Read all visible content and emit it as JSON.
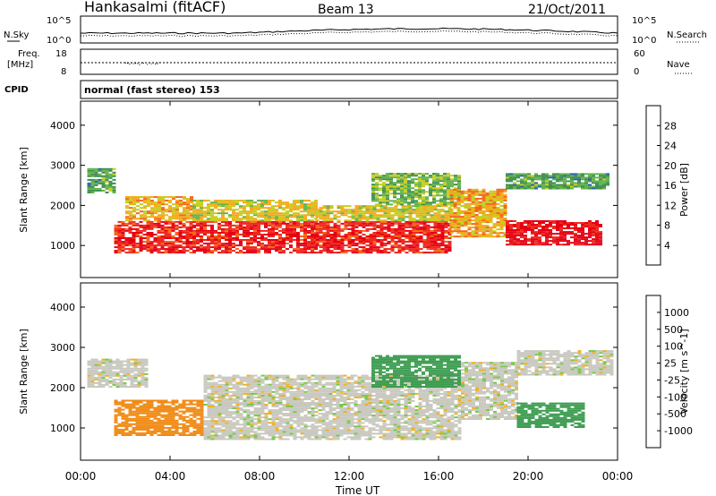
{
  "header": {
    "station": "Hankasalmi (fitACF)",
    "beam": "Beam 13",
    "date": "21/Oct/2011"
  },
  "sky_panel": {
    "left_label": "N.Sky",
    "left_ticks": [
      "10^5",
      "10^0"
    ],
    "right_label": "N.Search",
    "right_ticks": [
      "10^5",
      "10^0"
    ]
  },
  "freq_panel": {
    "left_label_1": "Freq.",
    "left_label_2": "[MHz]",
    "left_ticks": [
      "18",
      "8"
    ],
    "right_label": "Nave",
    "right_ticks": [
      "60",
      "0"
    ]
  },
  "cpid": {
    "label": "CPID",
    "value": "normal (fast stereo) 153"
  },
  "colors": {
    "power_scale": [
      "#0018ff",
      "#2f5fb0",
      "#3f8f50",
      "#63b34a",
      "#c6cc1c",
      "#f6a718",
      "#f5661c",
      "#ee2a1f",
      "#e60015"
    ],
    "velocity_scale": [
      "#e01010",
      "#f05a12",
      "#f08a14",
      "#f0b020",
      "#c8c8bf",
      "#c8c8bf",
      "#78c84a",
      "#3c9c50",
      "#2f6ab8",
      "#2e38a8"
    ]
  },
  "chart_data": [
    {
      "type": "heatmap",
      "title": "",
      "xlabel": "",
      "ylabel": "Slant Range [km]",
      "x_ticks": [
        "00:00",
        "04:00",
        "08:00",
        "12:00",
        "16:00",
        "20:00",
        "00:00"
      ],
      "y_ticks": [
        "1000",
        "2000",
        "3000",
        "4000"
      ],
      "ylim": [
        200,
        4600
      ],
      "colorbar": {
        "label": "Power [dB]",
        "ticks": [
          "4",
          "8",
          "12",
          "16",
          "20",
          "24",
          "28"
        ],
        "range": [
          0,
          30
        ]
      },
      "regions": [
        {
          "t0": 0.3,
          "t1": 1.5,
          "r0": 2300,
          "r1": 2900,
          "value": 10
        },
        {
          "t0": 1.5,
          "t1": 5.0,
          "r0": 800,
          "r1": 1600,
          "value": 26
        },
        {
          "t0": 2.0,
          "t1": 5.0,
          "r0": 1600,
          "r1": 2200,
          "value": 18
        },
        {
          "t0": 5.0,
          "t1": 10.5,
          "r0": 800,
          "r1": 1600,
          "value": 26
        },
        {
          "t0": 5.0,
          "t1": 10.5,
          "r0": 1600,
          "r1": 2100,
          "value": 16
        },
        {
          "t0": 10.5,
          "t1": 16.5,
          "r0": 800,
          "r1": 1600,
          "value": 26
        },
        {
          "t0": 10.5,
          "t1": 16.5,
          "r0": 1600,
          "r1": 2000,
          "value": 16
        },
        {
          "t0": 13.0,
          "t1": 17.0,
          "r0": 2000,
          "r1": 2800,
          "value": 12
        },
        {
          "t0": 16.5,
          "t1": 19.0,
          "r0": 1200,
          "r1": 2400,
          "value": 18
        },
        {
          "t0": 19.0,
          "t1": 23.3,
          "r0": 1000,
          "r1": 1600,
          "value": 28
        },
        {
          "t0": 19.0,
          "t1": 23.5,
          "r0": 2400,
          "r1": 2800,
          "value": 10
        }
      ]
    },
    {
      "type": "heatmap",
      "title": "",
      "xlabel": "Time UT",
      "ylabel": "Slant Range [km]",
      "x_ticks": [
        "00:00",
        "04:00",
        "08:00",
        "12:00",
        "16:00",
        "20:00",
        "00:00"
      ],
      "y_ticks": [
        "1000",
        "2000",
        "3000",
        "4000"
      ],
      "ylim": [
        200,
        4600
      ],
      "colorbar": {
        "label": "Velocity [m s^-1]",
        "ticks": [
          "1000",
          "500",
          "100",
          "25",
          "-25",
          "-100",
          "-500",
          "-1000"
        ]
      },
      "regions": [
        {
          "t0": 0.3,
          "t1": 3.0,
          "r0": 2000,
          "r1": 2700,
          "value": 0
        },
        {
          "t0": 1.5,
          "t1": 5.5,
          "r0": 800,
          "r1": 1700,
          "value": -150
        },
        {
          "t0": 5.5,
          "t1": 17.0,
          "r0": 700,
          "r1": 2300,
          "value": 0
        },
        {
          "t0": 13.0,
          "t1": 17.0,
          "r0": 2000,
          "r1": 2800,
          "value": 150
        },
        {
          "t0": 17.0,
          "t1": 19.5,
          "r0": 1200,
          "r1": 2600,
          "value": 0
        },
        {
          "t0": 19.5,
          "t1": 22.5,
          "r0": 1000,
          "r1": 1600,
          "value": 200
        },
        {
          "t0": 19.5,
          "t1": 23.8,
          "r0": 2300,
          "r1": 2900,
          "value": 0
        }
      ]
    }
  ]
}
